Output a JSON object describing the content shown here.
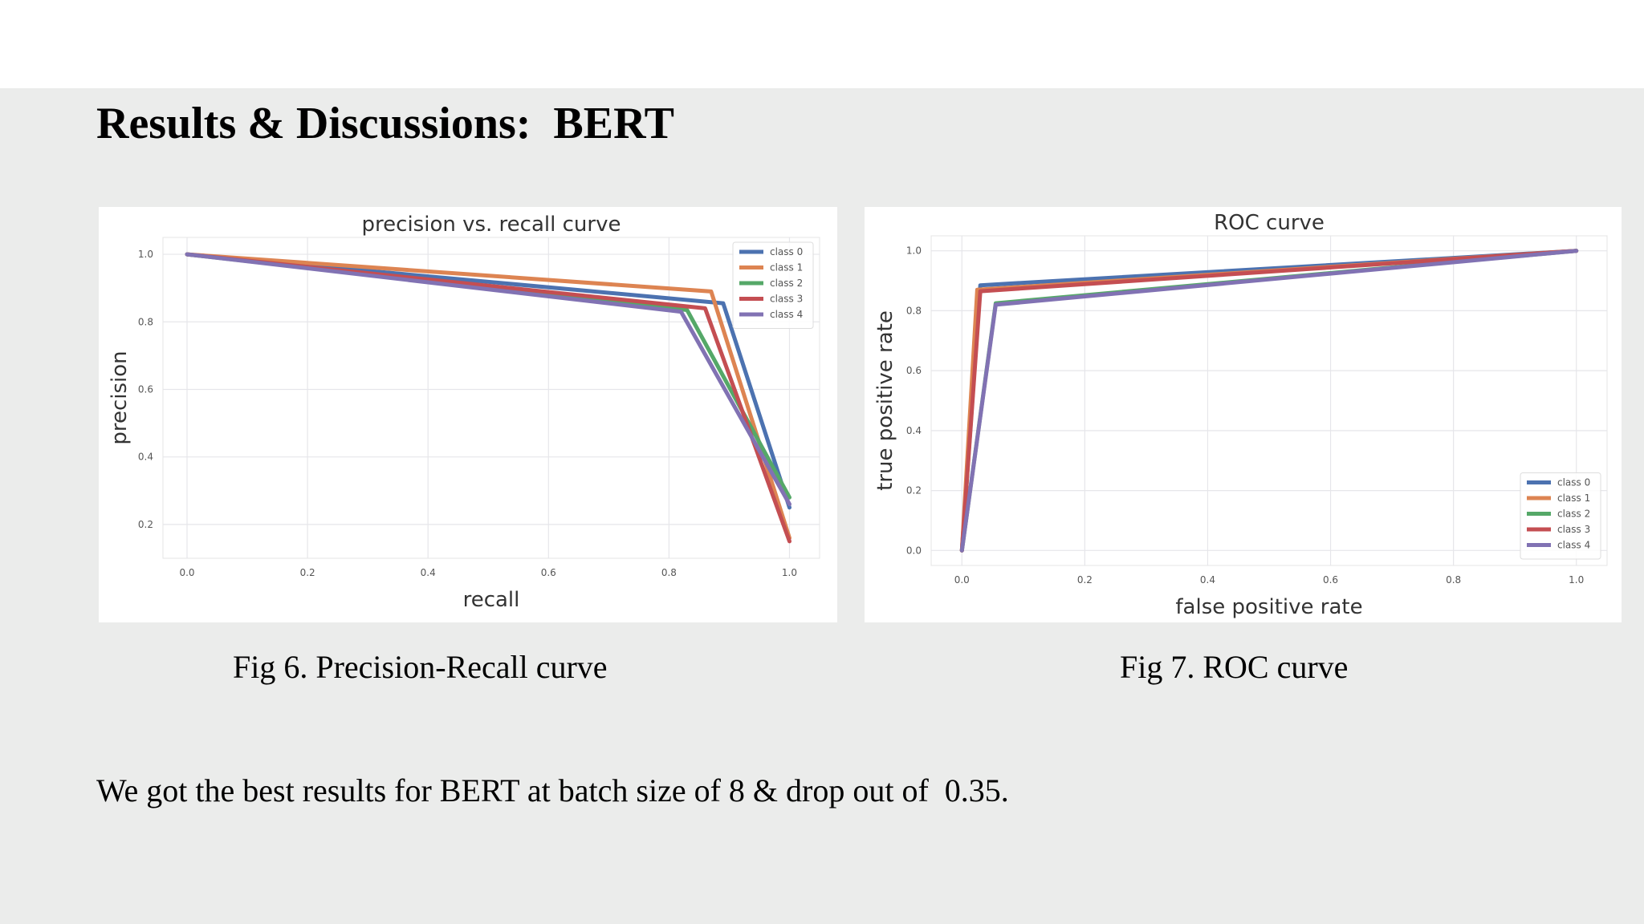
{
  "slide": {
    "title": "Results & Discussions:  BERT",
    "caption_pr": "Fig 6. Precision-Recall curve",
    "caption_roc": "Fig 7. ROC curve",
    "body": "We got the best results for BERT at batch size of 8 & drop out of  0.35."
  },
  "colors": {
    "background": "#ebeceb",
    "series": [
      "#4c72b0",
      "#dd8452",
      "#55a868",
      "#c44e52",
      "#8172b3"
    ]
  },
  "chart_data": [
    {
      "type": "line",
      "title": "precision vs. recall curve",
      "xlabel": "recall",
      "ylabel": "precision",
      "xlim": [
        -0.04,
        1.05
      ],
      "ylim": [
        0.1,
        1.05
      ],
      "xticks": [
        "0.0",
        "0.2",
        "0.4",
        "0.6",
        "0.8",
        "1.0"
      ],
      "yticks": [
        "0.2",
        "0.4",
        "0.6",
        "0.8",
        "1.0"
      ],
      "grid": true,
      "legend_position": "top-right",
      "series": [
        {
          "name": "class 0",
          "x": [
            0.0,
            0.89,
            1.0
          ],
          "y": [
            1.0,
            0.855,
            0.25
          ]
        },
        {
          "name": "class 1",
          "x": [
            0.0,
            0.87,
            1.0
          ],
          "y": [
            1.0,
            0.89,
            0.16
          ]
        },
        {
          "name": "class 2",
          "x": [
            0.0,
            0.83,
            1.0
          ],
          "y": [
            1.0,
            0.835,
            0.28
          ]
        },
        {
          "name": "class 3",
          "x": [
            0.0,
            0.86,
            1.0
          ],
          "y": [
            1.0,
            0.84,
            0.15
          ]
        },
        {
          "name": "class 4",
          "x": [
            0.0,
            0.82,
            1.0
          ],
          "y": [
            1.0,
            0.83,
            0.26
          ]
        }
      ]
    },
    {
      "type": "line",
      "title": "ROC curve",
      "xlabel": "false positive rate",
      "ylabel": "true positive rate",
      "xlim": [
        -0.05,
        1.05
      ],
      "ylim": [
        -0.05,
        1.05
      ],
      "xticks": [
        "0.0",
        "0.2",
        "0.4",
        "0.6",
        "0.8",
        "1.0"
      ],
      "yticks": [
        "0.0",
        "0.2",
        "0.4",
        "0.6",
        "0.8",
        "1.0"
      ],
      "grid": true,
      "legend_position": "lower-right",
      "series": [
        {
          "name": "class 0",
          "x": [
            0.0,
            0.03,
            1.0
          ],
          "y": [
            0.0,
            0.885,
            1.0
          ]
        },
        {
          "name": "class 1",
          "x": [
            0.0,
            0.025,
            1.0
          ],
          "y": [
            0.0,
            0.87,
            1.0
          ]
        },
        {
          "name": "class 2",
          "x": [
            0.0,
            0.055,
            1.0
          ],
          "y": [
            0.0,
            0.825,
            1.0
          ]
        },
        {
          "name": "class 3",
          "x": [
            0.0,
            0.03,
            1.0
          ],
          "y": [
            0.0,
            0.865,
            1.0
          ]
        },
        {
          "name": "class 4",
          "x": [
            0.0,
            0.055,
            1.0
          ],
          "y": [
            0.0,
            0.82,
            1.0
          ]
        }
      ]
    }
  ]
}
